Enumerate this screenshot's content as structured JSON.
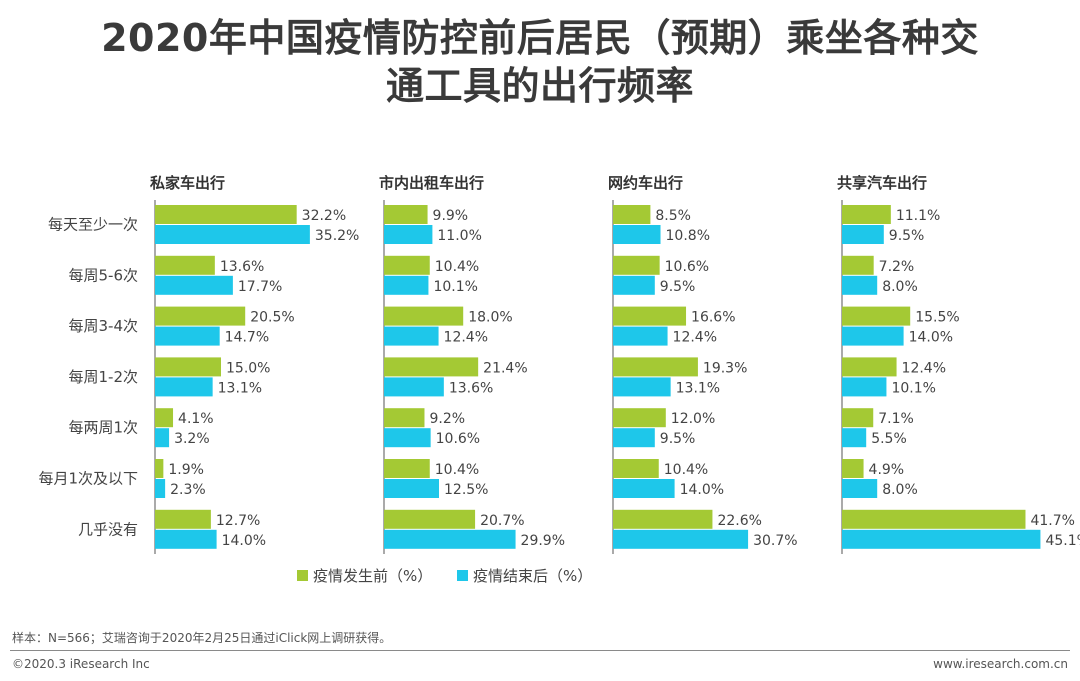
{
  "title_line1": "2020年中国疫情防控前后居民（预期）乘坐各种交",
  "title_line2": "通工具的出行频率",
  "colors": {
    "before": "#a4c934",
    "after": "#1ec7ea",
    "axis": "#555555"
  },
  "chart_data": [
    {
      "type": "bar",
      "title": "私家车出行",
      "categories": [
        "每天至少一次",
        "每周5-6次",
        "每周3-4次",
        "每周1-2次",
        "每两周1次",
        "每月1次及以下",
        "几乎没有"
      ],
      "series": [
        {
          "name": "疫情发生前（%）",
          "values": [
            32.2,
            13.6,
            20.5,
            15.0,
            4.1,
            1.9,
            12.7
          ]
        },
        {
          "name": "疫情结束后（%）",
          "values": [
            35.2,
            17.7,
            14.7,
            13.1,
            3.2,
            2.3,
            14.0
          ]
        }
      ]
    },
    {
      "type": "bar",
      "title": "市内出租车出行",
      "categories": [
        "每天至少一次",
        "每周5-6次",
        "每周3-4次",
        "每周1-2次",
        "每两周1次",
        "每月1次及以下",
        "几乎没有"
      ],
      "series": [
        {
          "name": "疫情发生前（%）",
          "values": [
            9.9,
            10.4,
            18.0,
            21.4,
            9.2,
            10.4,
            20.7
          ]
        },
        {
          "name": "疫情结束后（%）",
          "values": [
            11.0,
            10.1,
            12.4,
            13.6,
            10.6,
            12.5,
            29.9
          ]
        }
      ]
    },
    {
      "type": "bar",
      "title": "网约车出行",
      "categories": [
        "每天至少一次",
        "每周5-6次",
        "每周3-4次",
        "每周1-2次",
        "每两周1次",
        "每月1次及以下",
        "几乎没有"
      ],
      "series": [
        {
          "name": "疫情发生前（%）",
          "values": [
            8.5,
            10.6,
            16.6,
            19.3,
            12.0,
            10.4,
            22.6
          ]
        },
        {
          "name": "疫情结束后（%）",
          "values": [
            10.8,
            9.5,
            12.4,
            13.1,
            9.5,
            14.0,
            30.7
          ]
        }
      ]
    },
    {
      "type": "bar",
      "title": "共享汽车出行",
      "categories": [
        "每天至少一次",
        "每周5-6次",
        "每周3-4次",
        "每周1-2次",
        "每两周1次",
        "每月1次及以下",
        "几乎没有"
      ],
      "series": [
        {
          "name": "疫情发生前（%）",
          "values": [
            11.1,
            7.2,
            15.5,
            12.4,
            7.1,
            4.9,
            41.7
          ]
        },
        {
          "name": "疫情结束后（%）",
          "values": [
            9.5,
            8.0,
            14.0,
            10.1,
            5.5,
            8.0,
            45.1
          ]
        }
      ]
    }
  ],
  "footer": {
    "note": "样本：N=566；艾瑞咨询于2020年2月25日通过iClick网上调研获得。",
    "copyright": "©2020.3 iResearch Inc",
    "website": "www.iresearch.com.cn"
  }
}
